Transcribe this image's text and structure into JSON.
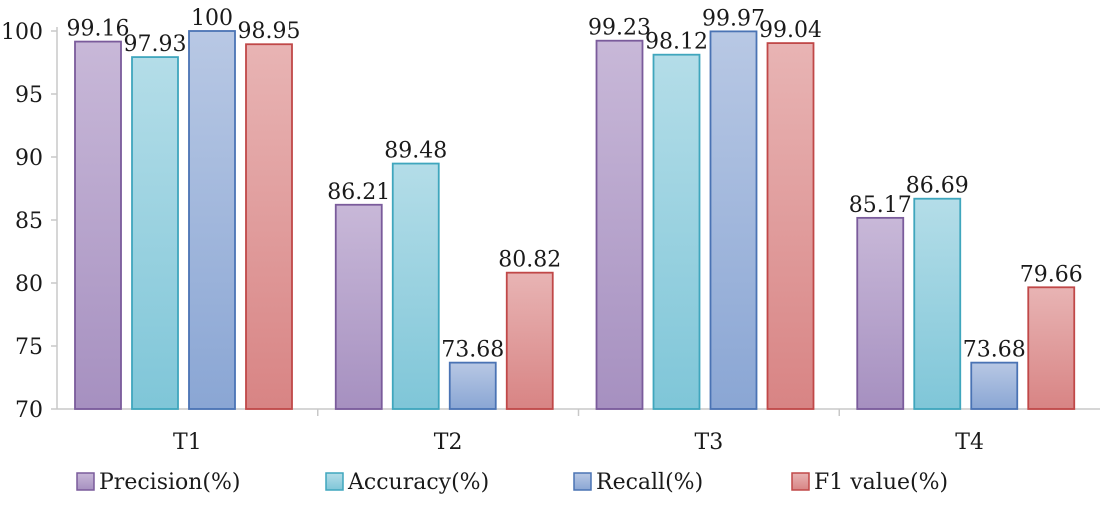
{
  "chart_data": {
    "type": "bar",
    "title": "",
    "xlabel": "",
    "ylabel": "",
    "ylim": [
      70,
      100
    ],
    "yticks": [
      70,
      75,
      80,
      85,
      90,
      95,
      100
    ],
    "grid": false,
    "legend_position": "bottom",
    "categories": [
      "T1",
      "T2",
      "T3",
      "T4"
    ],
    "series": [
      {
        "name": "Precision(%)",
        "color": "#a690c0",
        "color_light": "#c8b8d8",
        "border": "#7a5b9b",
        "values": [
          99.16,
          86.21,
          99.23,
          85.17
        ],
        "labels": [
          "99.16",
          "86.21",
          "99.23",
          "85.17"
        ]
      },
      {
        "name": "Accuracy(%)",
        "color": "#7fc6d8",
        "color_light": "#b4dde8",
        "border": "#3fa6bd",
        "values": [
          97.93,
          89.48,
          98.12,
          86.69
        ],
        "labels": [
          "97.93",
          "89.48",
          "98.12",
          "86.69"
        ]
      },
      {
        "name": "Recall(%)",
        "color": "#8aa6d4",
        "color_light": "#b8c8e4",
        "border": "#4a73b4",
        "values": [
          100,
          73.68,
          99.97,
          73.68
        ],
        "labels": [
          "100",
          "73.68",
          "99.97",
          "73.68"
        ]
      },
      {
        "name": "F1 value(%)",
        "color": "#d88484",
        "color_light": "#e8b4b4",
        "border": "#c04848",
        "values": [
          98.95,
          80.82,
          99.04,
          79.66
        ],
        "labels": [
          "98.95",
          "80.82",
          "99.04",
          "79.66"
        ]
      }
    ]
  }
}
